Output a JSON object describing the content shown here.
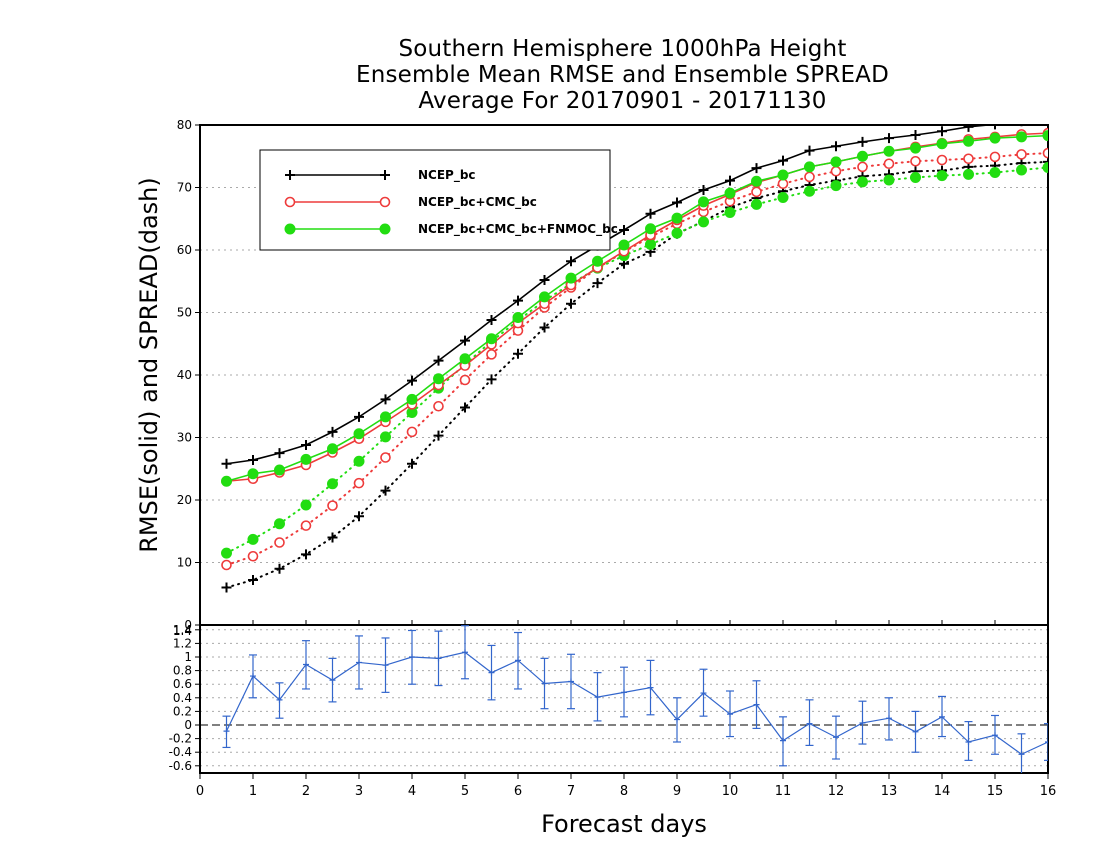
{
  "title": {
    "line1": "Southern Hemisphere 1000hPa Height",
    "line2": "Ensemble Mean RMSE and Ensemble SPREAD",
    "line3": "Average For 20170901 - 20171130"
  },
  "colors": {
    "ncep": "#000000",
    "cmc": "#ee3b3b",
    "fnmoc": "#22dd11",
    "diff": "#3366cc"
  },
  "chart_data": [
    {
      "type": "line",
      "ylabel": "RMSE(solid) and SPREAD(dash)",
      "xlabel": "Forecast days",
      "xlim": [
        0,
        16
      ],
      "ylim": [
        0,
        80
      ],
      "yticks": [
        0,
        10,
        20,
        30,
        40,
        50,
        60,
        70,
        80
      ],
      "xticks": [
        0,
        1,
        2,
        3,
        4,
        5,
        6,
        7,
        8,
        9,
        10,
        11,
        12,
        13,
        14,
        15,
        16
      ],
      "grid": true,
      "legend": "top-left",
      "x": [
        0.5,
        1,
        1.5,
        2,
        2.5,
        3,
        3.5,
        4,
        4.5,
        5,
        5.5,
        6,
        6.5,
        7,
        7.5,
        8,
        8.5,
        9,
        9.5,
        10,
        10.5,
        11,
        11.5,
        12,
        12.5,
        13,
        13.5,
        14,
        14.5,
        15,
        15.5,
        16
      ],
      "series": [
        {
          "name": "NCEP_bc",
          "style": "solid",
          "marker": "plus",
          "color": "#000000",
          "values": [
            25.8,
            26.4,
            27.5,
            28.8,
            30.9,
            33.3,
            36.1,
            39.1,
            42.3,
            45.5,
            48.8,
            51.9,
            55.2,
            58.2,
            60.7,
            63.2,
            65.8,
            67.6,
            69.6,
            71.1,
            73.1,
            74.3,
            75.9,
            76.6,
            77.3,
            77.9,
            78.4,
            79.0,
            79.7,
            80.1,
            80.6,
            81.2
          ]
        },
        {
          "name": "NCEP_bc+CMC_bc",
          "style": "solid",
          "marker": "open-circle",
          "color": "#ee3b3b",
          "values": [
            23.0,
            23.4,
            24.4,
            25.6,
            27.6,
            29.8,
            32.5,
            35.3,
            38.4,
            41.5,
            44.9,
            48.3,
            51.4,
            54.4,
            57.2,
            59.8,
            62.4,
            64.8,
            67.1,
            68.9,
            70.8,
            72.0,
            73.3,
            74.1,
            75.0,
            75.8,
            76.5,
            77.1,
            77.7,
            78.1,
            78.5,
            78.7
          ]
        },
        {
          "name": "NCEP_bc+CMC_bc+FNMOC_bc",
          "style": "solid",
          "marker": "filled-circle",
          "color": "#22dd11",
          "values": [
            23.0,
            24.2,
            24.8,
            26.5,
            28.2,
            30.6,
            33.3,
            36.1,
            39.4,
            42.6,
            45.8,
            49.2,
            52.5,
            55.5,
            58.2,
            60.8,
            63.4,
            65.1,
            67.7,
            69.1,
            71.0,
            72.0,
            73.3,
            74.1,
            75.0,
            75.8,
            76.3,
            77.0,
            77.4,
            77.9,
            78.1,
            78.3
          ]
        },
        {
          "name": "NCEP_bc SPREAD",
          "style": "dotted",
          "marker": "plus",
          "color": "#000000",
          "values": [
            6.0,
            7.2,
            9.0,
            11.3,
            14.0,
            17.4,
            21.5,
            25.8,
            30.3,
            34.8,
            39.3,
            43.4,
            47.6,
            51.4,
            54.7,
            57.8,
            59.7,
            62.6,
            64.6,
            66.8,
            68.3,
            69.4,
            70.4,
            71.1,
            71.8,
            72.1,
            72.6,
            72.7,
            73.3,
            73.5,
            73.9,
            74.1
          ]
        },
        {
          "name": "NCEP_bc+CMC_bc SPREAD",
          "style": "dotted",
          "marker": "open-circle",
          "color": "#ee3b3b",
          "values": [
            9.6,
            11.0,
            13.2,
            15.9,
            19.1,
            22.7,
            26.8,
            30.9,
            35.0,
            39.2,
            43.3,
            47.1,
            50.8,
            54.0,
            57.1,
            59.7,
            62.1,
            64.2,
            66.1,
            67.8,
            69.3,
            70.6,
            71.7,
            72.6,
            73.3,
            73.8,
            74.2,
            74.4,
            74.6,
            74.9,
            75.3,
            75.5
          ]
        },
        {
          "name": "NCEP_bc+CMC_bc+FNMOC_bc SPREAD",
          "style": "dotted",
          "marker": "filled-circle",
          "color": "#22dd11",
          "values": [
            11.5,
            13.7,
            16.2,
            19.2,
            22.6,
            26.2,
            30.1,
            34.0,
            37.9,
            41.7,
            45.4,
            48.7,
            51.9,
            54.6,
            57.1,
            59.1,
            60.9,
            62.7,
            64.5,
            66.0,
            67.3,
            68.4,
            69.4,
            70.3,
            70.9,
            71.2,
            71.6,
            71.9,
            72.1,
            72.4,
            72.8,
            73.2
          ]
        }
      ],
      "legend_labels": [
        "NCEP_bc",
        "NCEP_bc+CMC_bc",
        "NCEP_bc+CMC_bc+FNMOC_bc"
      ]
    },
    {
      "type": "line",
      "xlim": [
        0,
        16
      ],
      "ylim": [
        -0.8,
        1.5
      ],
      "yticks": [
        -0.6,
        -0.4,
        -0.2,
        0,
        0.2,
        0.4,
        0.6,
        0.8,
        1,
        1.2,
        1.4
      ],
      "ytick_labels": [
        "-0.6",
        "-0.4",
        "-0.2",
        "0",
        "0.2",
        "0.4",
        "0.6",
        "0.8",
        "1",
        "1.2",
        "1.4"
      ],
      "extra_top_label": "1.4",
      "grid": true,
      "zero_line": "dashed",
      "x": [
        0.5,
        1,
        1.5,
        2,
        2.5,
        3,
        3.5,
        4,
        4.5,
        5,
        5.5,
        6,
        6.5,
        7,
        7.5,
        8,
        8.5,
        9,
        9.5,
        10,
        10.5,
        11,
        11.5,
        12,
        12.5,
        13,
        13.5,
        14,
        14.5,
        15,
        15.5,
        16
      ],
      "values": [
        -0.09,
        0.72,
        0.37,
        0.89,
        0.66,
        0.92,
        0.88,
        1.0,
        0.98,
        1.07,
        0.77,
        0.95,
        0.61,
        0.64,
        0.41,
        0.48,
        0.55,
        0.08,
        0.47,
        0.16,
        0.3,
        -0.23,
        0.02,
        -0.18,
        0.03,
        0.1,
        -0.1,
        0.12,
        -0.25,
        -0.15,
        -0.43,
        -0.25
      ],
      "error_low": [
        -0.33,
        0.4,
        0.1,
        0.53,
        0.34,
        0.53,
        0.48,
        0.6,
        0.58,
        0.68,
        0.37,
        0.53,
        0.24,
        0.24,
        0.06,
        0.12,
        0.15,
        -0.25,
        0.13,
        -0.17,
        -0.05,
        -0.6,
        -0.3,
        -0.5,
        -0.28,
        -0.22,
        -0.4,
        -0.17,
        -0.52,
        -0.43,
        -0.72,
        -0.52
      ],
      "error_high": [
        0.13,
        1.03,
        0.62,
        1.24,
        0.98,
        1.31,
        1.28,
        1.39,
        1.38,
        1.46,
        1.17,
        1.36,
        0.98,
        1.04,
        0.77,
        0.85,
        0.95,
        0.4,
        0.82,
        0.5,
        0.65,
        0.12,
        0.37,
        0.13,
        0.35,
        0.4,
        0.2,
        0.42,
        0.05,
        0.14,
        -0.13,
        0.02
      ],
      "color": "#3366cc"
    }
  ]
}
